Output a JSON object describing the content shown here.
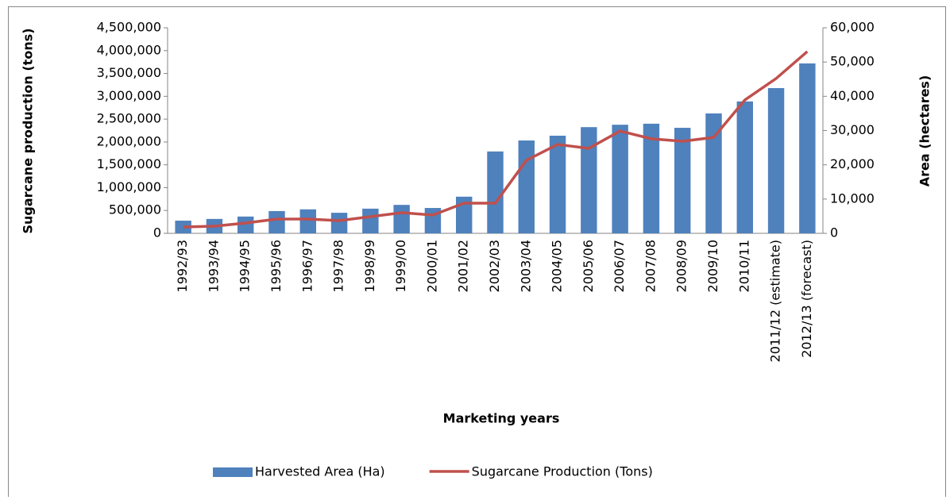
{
  "chart_data": {
    "type": "bar_line",
    "x_label": "Marketing years",
    "y_label": "Sugarcane production (tons)",
    "y2_label": "Area (hectares)",
    "categories": [
      "1992/93",
      "1993/94",
      "1994/95",
      "1995/96",
      "1996/97",
      "1997/98",
      "1998/99",
      "1999/00",
      "2000/01",
      "2001/02",
      "2002/03",
      "2003/04",
      "2004/05",
      "2005/06",
      "2006/07",
      "2007/08",
      "2008/09",
      "2009/10",
      "2010/11",
      "2011/12 (estimate)",
      "2012/13 (forecast)"
    ],
    "series": [
      {
        "name": "Harvested Area (Ha)",
        "color": "#4f81bd",
        "kind": "bar",
        "axis": "y2",
        "values": [
          3700,
          4200,
          4900,
          6500,
          7000,
          6000,
          7200,
          8300,
          7400,
          10700,
          23900,
          27100,
          28500,
          31000,
          31700,
          32000,
          30800,
          35000,
          38500,
          42400,
          49600
        ]
      },
      {
        "name": "Sugarcane Production (Tons)",
        "color": "#c0504d",
        "kind": "line",
        "values": [
          140000,
          156000,
          226000,
          313000,
          313000,
          278000,
          365000,
          452000,
          400000,
          660000,
          660000,
          1600000,
          1946000,
          1860000,
          2240000,
          2070000,
          2015000,
          2100000,
          2920000,
          3390000,
          3980000
        ]
      }
    ],
    "ylim": [
      0,
      4500000
    ],
    "yticks": [
      0,
      {
        "value": 500000,
        "label": "500,000"
      },
      {
        "value": 1000000,
        "label": "1,000,000"
      },
      {
        "value": 1500000,
        "label": "1,500,000"
      },
      {
        "value": 2000000,
        "label": "2,000,000"
      },
      {
        "value": 2500000,
        "label": "2,500,000"
      },
      {
        "value": 3000000,
        "label": "3,000,000"
      },
      {
        "value": 3500000,
        "label": "3,500,000"
      },
      {
        "value": 4000000,
        "label": "4,000,000"
      },
      {
        "value": 4500000,
        "label": "4,500,000"
      }
    ],
    "y2lim": [
      0,
      60000
    ],
    "y2ticks": [
      0,
      {
        "value": 10000,
        "label": "10,000"
      },
      {
        "value": 20000,
        "label": "20,000"
      },
      {
        "value": 30000,
        "label": "30,000"
      },
      {
        "value": 40000,
        "label": "40,000"
      },
      {
        "value": 50000,
        "label": "50,000"
      },
      {
        "value": 60000,
        "label": "60,000"
      }
    ],
    "legend": "bottom"
  }
}
